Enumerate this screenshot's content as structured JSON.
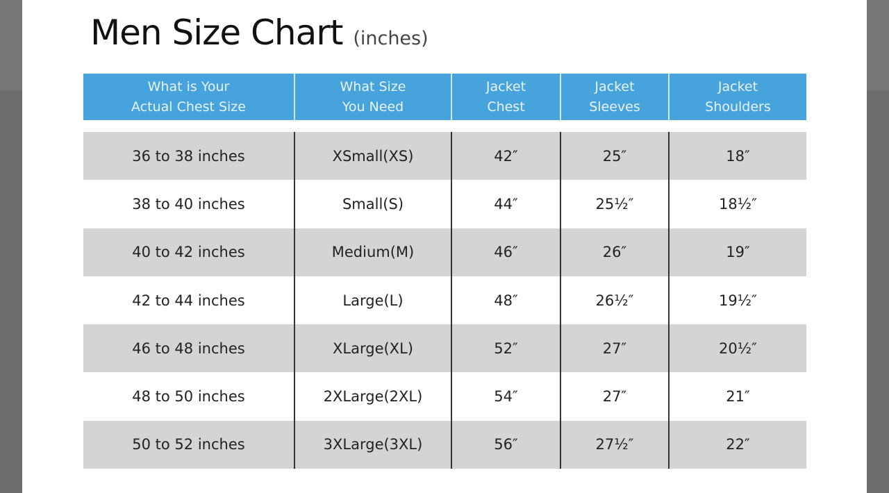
{
  "title": "Men Size Chart",
  "unit": "(inches)",
  "headers": [
    "What is Your\nActual Chest Size",
    "What Size\nYou Need",
    "Jacket\nChest",
    "Jacket\nSleeves",
    "Jacket\nShoulders"
  ],
  "rows": [
    [
      "36 to 38 inches",
      "XSmall(XS)",
      "42″",
      "25″",
      "18″"
    ],
    [
      "38 to 40 inches",
      "Small(S)",
      "44″",
      "25½″",
      "18½″"
    ],
    [
      "40 to 42 inches",
      "Medium(M)",
      "46″",
      "26″",
      "19″"
    ],
    [
      "42 to 44 inches",
      "Large(L)",
      "48″",
      "26½″",
      "19½″"
    ],
    [
      "46 to 48 inches",
      "XLarge(XL)",
      "52″",
      "27″",
      "20½″"
    ],
    [
      "48 to 50 inches",
      "2XLarge(2XL)",
      "54″",
      "27″",
      "21″"
    ],
    [
      "50 to 52 inches",
      "3XLarge(3XL)",
      "56″",
      "27½″",
      "22″"
    ]
  ],
  "colors": {
    "header": "#47a3dc",
    "stripe": "#d3d4d6"
  }
}
